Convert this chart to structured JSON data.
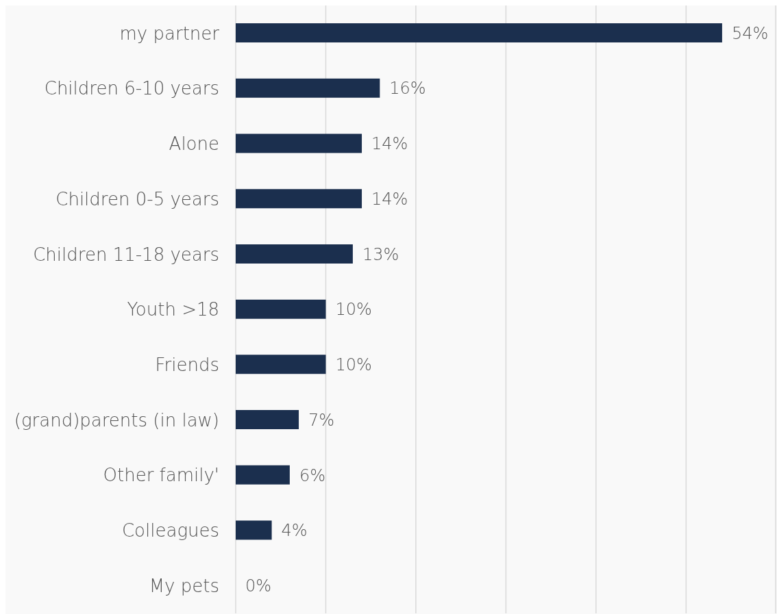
{
  "chart_data": {
    "type": "bar",
    "orientation": "horizontal",
    "categories": [
      "my partner",
      "Children 6-10 years",
      "Alone",
      "Children 0-5 years",
      "Children 11-18 years",
      "Youth >18",
      "Friends",
      "(grand)parents (in law)",
      "Other family'",
      "Colleagues",
      "My pets"
    ],
    "values": [
      54,
      16,
      14,
      14,
      13,
      10,
      10,
      7,
      6,
      4,
      0
    ],
    "value_labels": [
      "54%",
      "16%",
      "14%",
      "14%",
      "13%",
      "10%",
      "10%",
      "7%",
      "6%",
      "4%",
      "0%"
    ],
    "color": "#1b2f4e",
    "tick_labels": "y",
    "grid": "x",
    "legend": false
  }
}
